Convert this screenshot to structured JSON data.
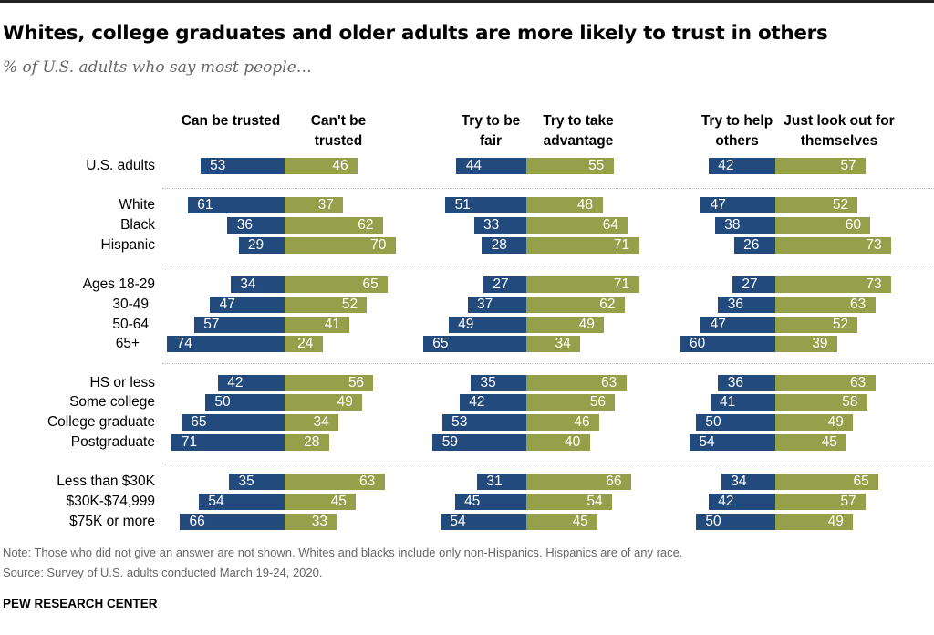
{
  "title": "Whites, college graduates and older adults are more likely to trust in others",
  "subtitle": "% of U.S. adults who say most people…",
  "note": "Note: Those who did not give an answer are not shown. Whites and blacks include only non-Hispanics. Hispanics are of any race.",
  "source": "Source: Survey of U.S. adults conducted March 19-24, 2020.",
  "brand": "PEW RESEARCH CENTER",
  "colors": {
    "left": "#224a7d",
    "right": "#96a04a"
  },
  "chart_data": {
    "type": "bar",
    "orientation": "horizontal diverging",
    "categories": [
      "U.S. adults",
      "White",
      "Black",
      "Hispanic",
      "Ages 18-29",
      "30-49",
      "50-64",
      "65+",
      "HS or less",
      "Some college",
      "College graduate",
      "Postgraduate",
      "Less than $30K",
      "$30K-$74,999",
      "$75K or more"
    ],
    "groups": [
      [
        0
      ],
      [
        1,
        2,
        3
      ],
      [
        4,
        5,
        6,
        7
      ],
      [
        8,
        9,
        10,
        11
      ],
      [
        12,
        13,
        14
      ]
    ],
    "panels": [
      {
        "left_label": "Can be trusted",
        "right_label": "Can't be trusted",
        "left": [
          53,
          61,
          36,
          29,
          34,
          47,
          57,
          74,
          42,
          50,
          65,
          71,
          35,
          54,
          66
        ],
        "right": [
          46,
          37,
          62,
          70,
          65,
          52,
          41,
          24,
          56,
          49,
          34,
          28,
          63,
          45,
          33
        ]
      },
      {
        "left_label": "Try to be fair",
        "right_label": "Try to take advantage",
        "left": [
          44,
          51,
          33,
          28,
          27,
          37,
          49,
          65,
          35,
          42,
          53,
          59,
          31,
          45,
          54
        ],
        "right": [
          55,
          48,
          64,
          71,
          71,
          62,
          49,
          34,
          63,
          56,
          46,
          40,
          66,
          54,
          45
        ]
      },
      {
        "left_label": "Try to help others",
        "right_label": "Just look out for themselves",
        "left": [
          42,
          47,
          38,
          26,
          27,
          36,
          47,
          60,
          36,
          41,
          50,
          54,
          34,
          42,
          50
        ],
        "right": [
          57,
          52,
          60,
          73,
          73,
          63,
          52,
          39,
          63,
          58,
          49,
          45,
          65,
          57,
          49
        ]
      }
    ]
  }
}
